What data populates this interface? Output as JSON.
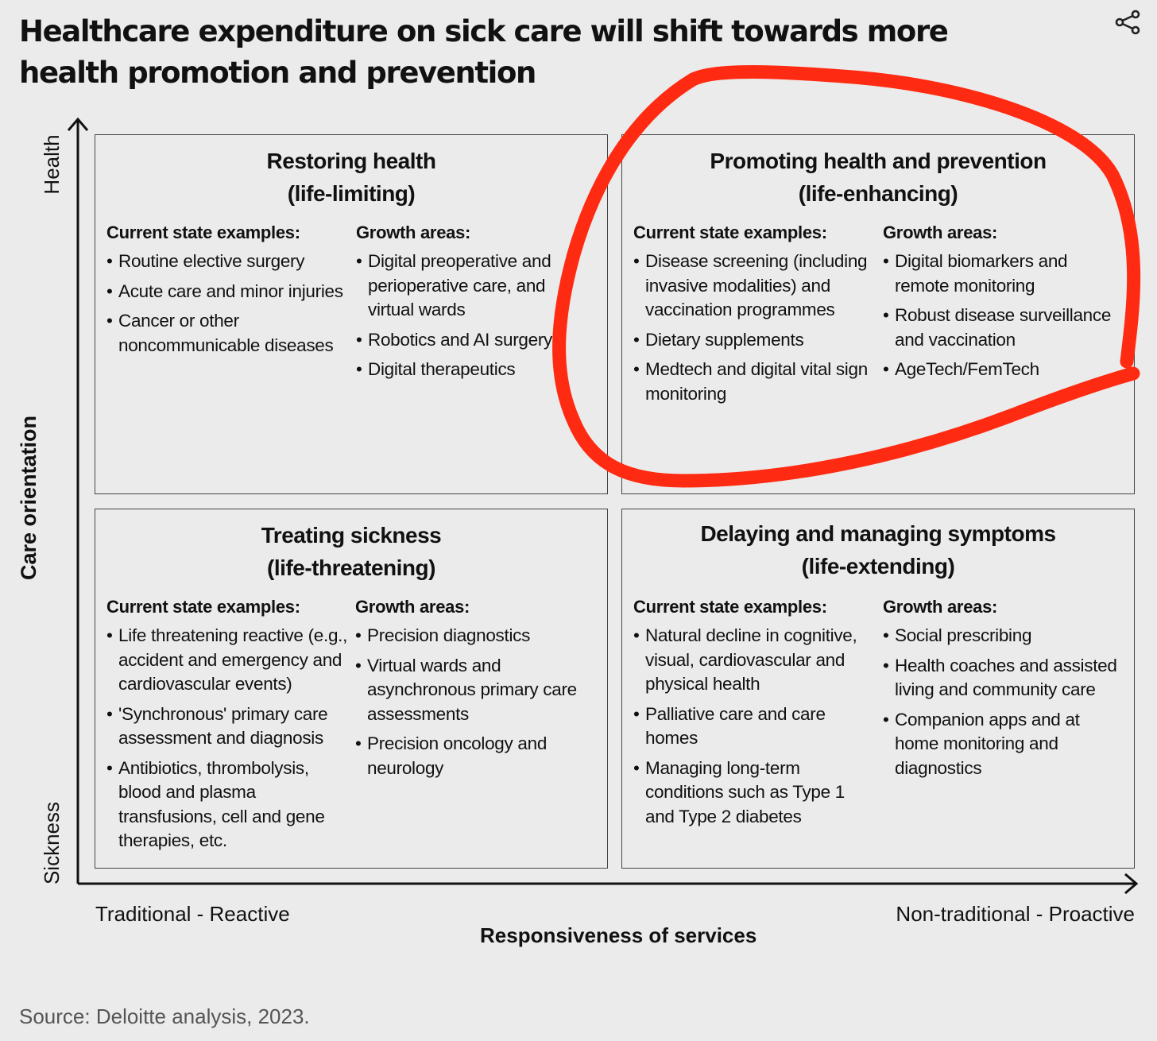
{
  "title": "Healthcare expenditure on sick care will shift towards more health promotion and prevention",
  "y_axis": {
    "label": "Care orientation",
    "top": "Health",
    "bottom": "Sickness"
  },
  "x_axis": {
    "label": "Responsiveness of services",
    "left": "Traditional - Reactive",
    "right": "Non-traditional - Proactive"
  },
  "quadrants": {
    "top_left": {
      "title": "Restoring health",
      "subtitle": "(life-limiting)",
      "current_head": "Current state examples:",
      "growth_head": "Growth areas:",
      "current": [
        "Routine elective surgery",
        "Acute care and minor injuries",
        "Cancer or other noncommunicable diseases"
      ],
      "growth": [
        "Digital preoperative and perioperative care, and virtual wards",
        "Robotics and AI surgery",
        "Digital therapeutics"
      ]
    },
    "top_right": {
      "title": "Promoting health and prevention",
      "subtitle": "(life-enhancing)",
      "current_head": "Current state examples:",
      "growth_head": "Growth areas:",
      "current": [
        "Disease screening (including invasive modalities) and vaccination programmes",
        "Dietary supplements",
        "Medtech and digital vital sign monitoring"
      ],
      "growth": [
        "Digital biomarkers and remote monitoring",
        "Robust disease surveillance and vaccination",
        "AgeTech/FemTech"
      ]
    },
    "bottom_left": {
      "title": "Treating sickness",
      "subtitle": "(life-threatening)",
      "current_head": "Current state examples:",
      "growth_head": "Growth areas:",
      "current": [
        "Life threatening reactive (e.g., accident and emergency and cardiovascular events)",
        "'Synchronous' primary care assessment and diagnosis",
        "Antibiotics, thrombolysis, blood and plasma transfusions, cell and gene therapies, etc."
      ],
      "growth": [
        "Precision diagnostics",
        "Virtual wards and asynchronous primary care assessments",
        "Precision oncology and neurology"
      ]
    },
    "bottom_right": {
      "title": "Delaying and managing symptoms",
      "subtitle": "(life-extending)",
      "current_head": "Current state examples:",
      "growth_head": "Growth areas:",
      "current": [
        "Natural decline in cognitive, visual, cardiovascular and physical health",
        "Palliative care and care homes",
        "Managing long-term conditions such as Type 1 and Type 2 diabetes"
      ],
      "growth": [
        "Social prescribing",
        "Health coaches and assisted living and community care",
        "Companion apps and at home monitoring and diagnostics"
      ]
    }
  },
  "source": "Source: Deloitte analysis, 2023.",
  "icons": {
    "share": "share-icon"
  },
  "colors": {
    "annotation": "#ff2a12",
    "background": "#ebebeb"
  }
}
